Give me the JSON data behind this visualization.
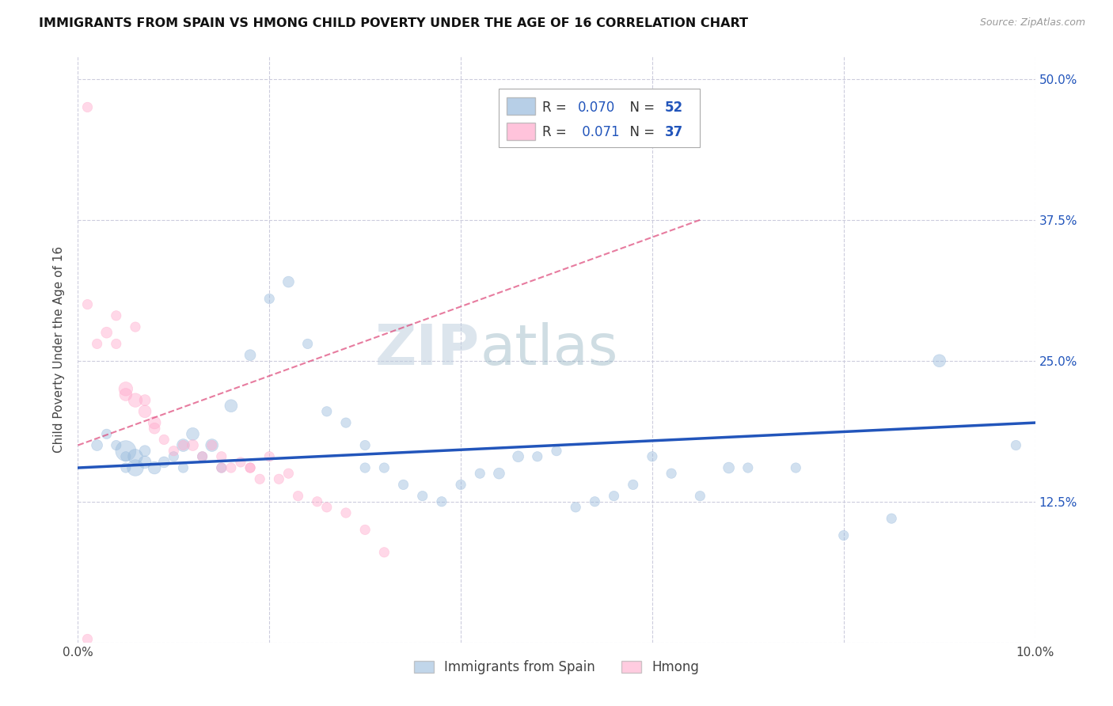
{
  "title": "IMMIGRANTS FROM SPAIN VS HMONG CHILD POVERTY UNDER THE AGE OF 16 CORRELATION CHART",
  "source": "Source: ZipAtlas.com",
  "ylabel": "Child Poverty Under the Age of 16",
  "xlim": [
    0.0,
    0.1
  ],
  "ylim": [
    0.0,
    0.52
  ],
  "blue_color": "#99BBDD",
  "pink_color": "#FFAACC",
  "trend_blue": "#2255BB",
  "trend_pink": "#DD4477",
  "background": "#FFFFFF",
  "grid_color": "#CCCCDD",
  "spain_x": [
    0.002,
    0.003,
    0.004,
    0.005,
    0.005,
    0.005,
    0.006,
    0.006,
    0.007,
    0.007,
    0.008,
    0.009,
    0.01,
    0.011,
    0.011,
    0.012,
    0.013,
    0.014,
    0.015,
    0.016,
    0.018,
    0.02,
    0.022,
    0.024,
    0.026,
    0.028,
    0.03,
    0.03,
    0.032,
    0.034,
    0.036,
    0.038,
    0.04,
    0.042,
    0.044,
    0.046,
    0.048,
    0.05,
    0.052,
    0.054,
    0.056,
    0.058,
    0.06,
    0.062,
    0.065,
    0.068,
    0.07,
    0.075,
    0.08,
    0.085,
    0.09,
    0.098
  ],
  "spain_y": [
    0.175,
    0.185,
    0.175,
    0.165,
    0.155,
    0.17,
    0.155,
    0.165,
    0.16,
    0.17,
    0.155,
    0.16,
    0.165,
    0.175,
    0.155,
    0.185,
    0.165,
    0.175,
    0.155,
    0.21,
    0.255,
    0.305,
    0.32,
    0.265,
    0.205,
    0.195,
    0.175,
    0.155,
    0.155,
    0.14,
    0.13,
    0.125,
    0.14,
    0.15,
    0.15,
    0.165,
    0.165,
    0.17,
    0.12,
    0.125,
    0.13,
    0.14,
    0.165,
    0.15,
    0.13,
    0.155,
    0.155,
    0.155,
    0.095,
    0.11,
    0.25,
    0.175
  ],
  "spain_sizes": [
    100,
    80,
    80,
    80,
    80,
    350,
    220,
    180,
    130,
    100,
    130,
    100,
    80,
    130,
    80,
    130,
    80,
    130,
    80,
    130,
    100,
    80,
    100,
    80,
    80,
    80,
    80,
    80,
    80,
    80,
    80,
    80,
    80,
    80,
    100,
    100,
    80,
    80,
    80,
    80,
    80,
    80,
    80,
    80,
    80,
    100,
    80,
    80,
    80,
    80,
    130,
    80
  ],
  "hmong_x": [
    0.001,
    0.002,
    0.003,
    0.004,
    0.005,
    0.005,
    0.006,
    0.007,
    0.007,
    0.008,
    0.008,
    0.009,
    0.01,
    0.011,
    0.012,
    0.013,
    0.014,
    0.015,
    0.015,
    0.016,
    0.017,
    0.018,
    0.018,
    0.019,
    0.02,
    0.021,
    0.022,
    0.023,
    0.025,
    0.026,
    0.028,
    0.03,
    0.032,
    0.001,
    0.004,
    0.006,
    0.001
  ],
  "hmong_y": [
    0.475,
    0.265,
    0.275,
    0.265,
    0.225,
    0.22,
    0.215,
    0.205,
    0.215,
    0.195,
    0.19,
    0.18,
    0.17,
    0.175,
    0.175,
    0.165,
    0.175,
    0.165,
    0.155,
    0.155,
    0.16,
    0.155,
    0.155,
    0.145,
    0.165,
    0.145,
    0.15,
    0.13,
    0.125,
    0.12,
    0.115,
    0.1,
    0.08,
    0.3,
    0.29,
    0.28,
    0.003
  ],
  "hmong_sizes": [
    80,
    80,
    100,
    80,
    160,
    130,
    160,
    130,
    100,
    130,
    100,
    80,
    80,
    80,
    100,
    80,
    80,
    80,
    80,
    80,
    80,
    80,
    80,
    80,
    80,
    80,
    80,
    80,
    80,
    80,
    80,
    80,
    80,
    80,
    80,
    80,
    80
  ],
  "spain_trend_x": [
    0.0,
    0.1
  ],
  "spain_trend_y": [
    0.155,
    0.195
  ],
  "hmong_trend_x": [
    0.0,
    0.065
  ],
  "hmong_trend_y": [
    0.175,
    0.375
  ]
}
